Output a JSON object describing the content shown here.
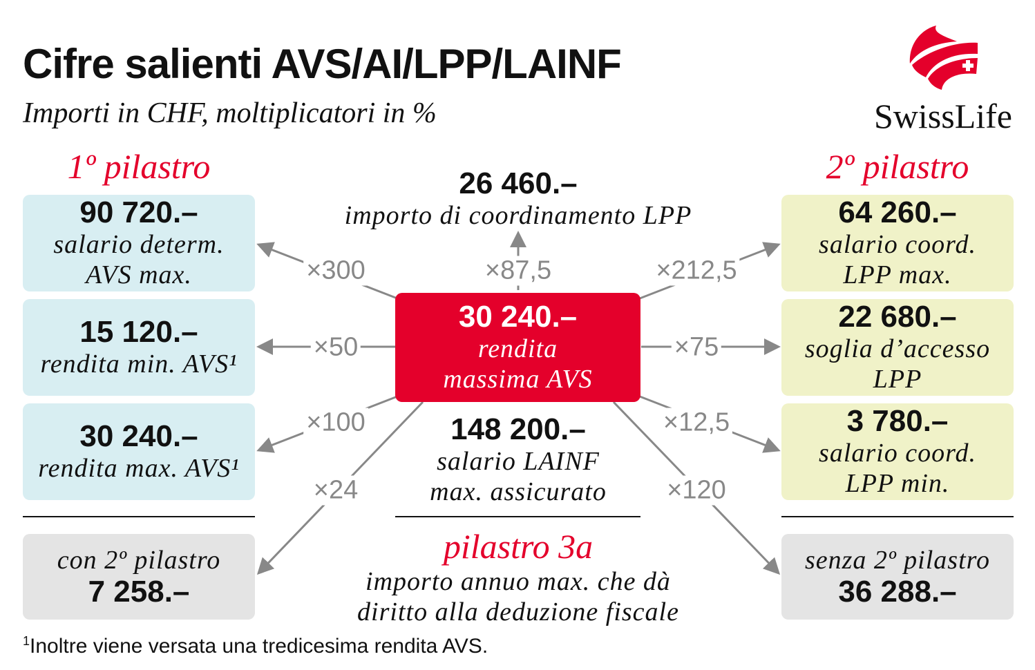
{
  "title": "Cifre salienti AVS/AI/LPP/LAINF",
  "subtitle": "Importi in CHF, moltiplicatori in %",
  "logo": {
    "text": "SwissLife",
    "color": "#e4002b"
  },
  "colors": {
    "accent": "#e4002b",
    "first_pillar_box": "#d8eef2",
    "second_pillar_box": "#f0f2c8",
    "third_pillar_box": "#e4e4e4",
    "arrow": "#888888"
  },
  "first_pillar": {
    "heading": "1º pilastro",
    "boxes": [
      {
        "value": "90 720.–",
        "label1": "salario determ.",
        "label2": "AVS max."
      },
      {
        "value": "15 120.–",
        "label1": "rendita min. AVS¹"
      },
      {
        "value": "30 240.–",
        "label1": "rendita max. AVS¹"
      }
    ]
  },
  "second_pillar": {
    "heading": "2º pilastro",
    "boxes": [
      {
        "value": "64 260.–",
        "label1": "salario coord.",
        "label2": "LPP max."
      },
      {
        "value": "22 680.–",
        "label1": "soglia d’accesso",
        "label2": "LPP"
      },
      {
        "value": "3 780.–",
        "label1": "salario coord.",
        "label2": "LPP min."
      }
    ]
  },
  "center": {
    "value": "30 240.–",
    "label1": "rendita",
    "label2": "massima AVS"
  },
  "top": {
    "value": "26 460.–",
    "label": "importo di coordinamento LPP"
  },
  "lainf": {
    "value": "148 200.–",
    "label1": "salario LAINF",
    "label2": "max. assicurato"
  },
  "pillar3a": {
    "heading": "pilastro 3a",
    "label1": "importo annuo max. che dà",
    "label2": "diritto alla deduzione fiscale",
    "with": {
      "label": "con 2º pilastro",
      "value": "7 258.–"
    },
    "without": {
      "label": "senza 2º pilastro",
      "value": "36 288.–"
    }
  },
  "multipliers": {
    "m300": "×300",
    "m875": "×87,5",
    "m2125": "×212,5",
    "m50": "×50",
    "m75": "×75",
    "m100": "×100",
    "m125": "×12,5",
    "m24": "×24",
    "m120": "×120"
  },
  "footnote": {
    "mark": "1",
    "text": "Inoltre viene versata una tredicesima rendita AVS."
  }
}
